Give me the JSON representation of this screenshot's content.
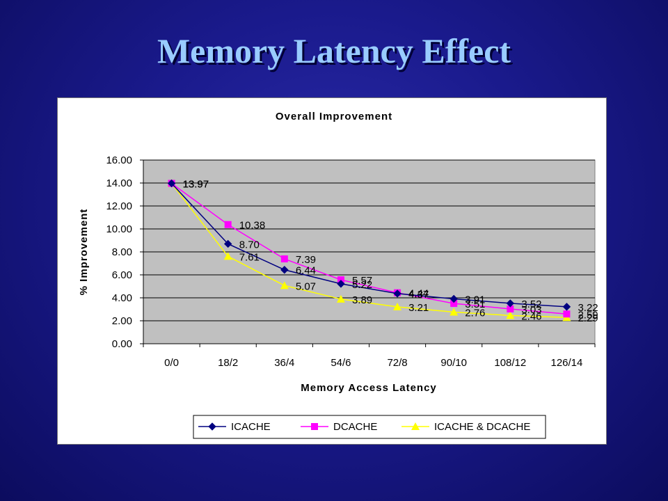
{
  "slide": {
    "title": "Memory Latency Effect"
  },
  "chart_data": {
    "type": "line",
    "title": "Overall Improvement",
    "xlabel": "Memory Access Latency",
    "ylabel": "% Improvement",
    "categories": [
      "0/0",
      "18/2",
      "36/4",
      "54/6",
      "72/8",
      "90/10",
      "108/12",
      "126/14"
    ],
    "ylim": [
      0,
      16
    ],
    "yticks": [
      "0.00",
      "2.00",
      "4.00",
      "6.00",
      "8.00",
      "10.00",
      "12.00",
      "14.00",
      "16.00"
    ],
    "grid": true,
    "legend_position": "bottom",
    "series": [
      {
        "name": "ICACHE",
        "color": "#000080",
        "marker": "diamond-icon",
        "values": [
          13.97,
          8.7,
          6.44,
          5.22,
          4.37,
          3.91,
          3.52,
          3.22
        ],
        "labels": [
          "13.97",
          "8.70",
          "6.44",
          "5.22",
          "4.37",
          "3.91",
          "3.52",
          "3.22"
        ]
      },
      {
        "name": "DCACHE",
        "color": "#ff00ff",
        "marker": "square-icon",
        "values": [
          13.97,
          10.38,
          7.39,
          5.57,
          4.44,
          3.51,
          3.03,
          2.59
        ],
        "labels": [
          "13.97",
          "10.38",
          "7.39",
          "5.57",
          "4.44",
          "3.51",
          "3.03",
          "2.59"
        ]
      },
      {
        "name": "ICACHE & DCACHE",
        "color": "#ffff00",
        "marker": "triangle-icon",
        "values": [
          13.97,
          7.61,
          5.07,
          3.89,
          3.21,
          2.76,
          2.46,
          2.29
        ],
        "labels": [
          "13.97",
          "7.61",
          "5.07",
          "3.89",
          "3.21",
          "2.76",
          "2.46",
          "2.29"
        ]
      }
    ]
  }
}
